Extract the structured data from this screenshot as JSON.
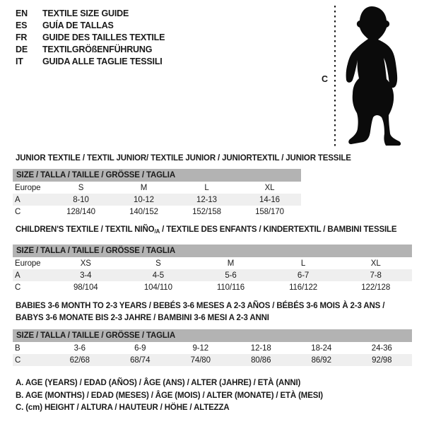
{
  "languages": [
    {
      "code": "EN",
      "label": "TEXTILE SIZE GUIDE"
    },
    {
      "code": "ES",
      "label": "GUÍA DE TALLAS"
    },
    {
      "code": "FR",
      "label": "GUIDE DES TAILLES TEXTILE"
    },
    {
      "code": "DE",
      "label": "TEXTILGRÖßENFÜHRUNG"
    },
    {
      "code": "IT",
      "label": "GUIDA ALLE TAGLIE TESSILI"
    }
  ],
  "figure": {
    "measure_label": "C",
    "silhouette": "baby-silhouette"
  },
  "tables": [
    {
      "title": "JUNIOR TEXTILE / TEXTIL JUNIOR/ TEXTILE JUNIOR / JUNIORTEXTIL / JUNIOR TESSILE",
      "size_bar": "SIZE / TALLA / TAILLE / GRÖSSE / TAGLIA",
      "rows": [
        {
          "shaded": false,
          "cells": [
            "Europe",
            "S",
            "M",
            "L",
            "XL"
          ]
        },
        {
          "shaded": true,
          "cells": [
            "A",
            "8-10",
            "10-12",
            "12-13",
            "14-16"
          ]
        },
        {
          "shaded": false,
          "cells": [
            "C",
            "128/140",
            "140/152",
            "152/158",
            "158/170"
          ]
        }
      ]
    },
    {
      "title_prefix": "CHILDREN'S TEXTILE / TEXTIL NIÑO",
      "title_sub": "/A",
      "title_suffix": " / TEXTILE DES ENFANTS / KINDERTEXTIL / BAMBINI TESSILE",
      "size_bar": "SIZE / TALLA / TAILLE / GRÖSSE / TAGLIA",
      "rows": [
        {
          "shaded": false,
          "cells": [
            "Europe",
            "XS",
            "S",
            "M",
            "L",
            "XL"
          ]
        },
        {
          "shaded": true,
          "cells": [
            "A",
            "3-4",
            "4-5",
            "5-6",
            "6-7",
            "7-8"
          ]
        },
        {
          "shaded": false,
          "cells": [
            "C",
            "98/104",
            "104/110",
            "110/116",
            "116/122",
            "122/128"
          ]
        }
      ]
    },
    {
      "title_line1": "BABIES 3-6 MONTH TO 2-3 YEARS / BEBÉS 3-6 MESES A 2-3 AÑOS / BÉBÉS 3-6 MOIS À 2-3 ANS /",
      "title_line2": "BABYS 3-6 MONATE BIS 2-3 JAHRE / BAMBINI 3-6 MESI A 2-3 ANNI",
      "size_bar": "SIZE / TALLA / TAILLE / GRÖSSE / TAGLIA",
      "rows": [
        {
          "shaded": false,
          "cells": [
            "B",
            "3-6",
            "6-9",
            "9-12",
            "12-18",
            "18-24",
            "24-36"
          ]
        },
        {
          "shaded": true,
          "cells": [
            "C",
            "62/68",
            "68/74",
            "74/80",
            "80/86",
            "86/92",
            "92/98"
          ]
        }
      ]
    }
  ],
  "footnotes": [
    "A. AGE (YEARS) / EDAD (AÑOS) / ÂGE (ANS) / ALTER (JAHRE) / ETÀ (ANNI)",
    "B. AGE (MONTHS) / EDAD (MESES) / ÂGE (MOIS) / ALTER (MONATE) / ETÀ (MESI)",
    "C. (cm) HEIGHT / ALTURA / HAUTEUR / HÖHE / ALTEZZA"
  ],
  "colors": {
    "size_bar_bg": "#b3b3b3",
    "shaded_row_bg": "#efefef",
    "silhouette": "#0b0b0b",
    "text": "#1a1a1a"
  }
}
